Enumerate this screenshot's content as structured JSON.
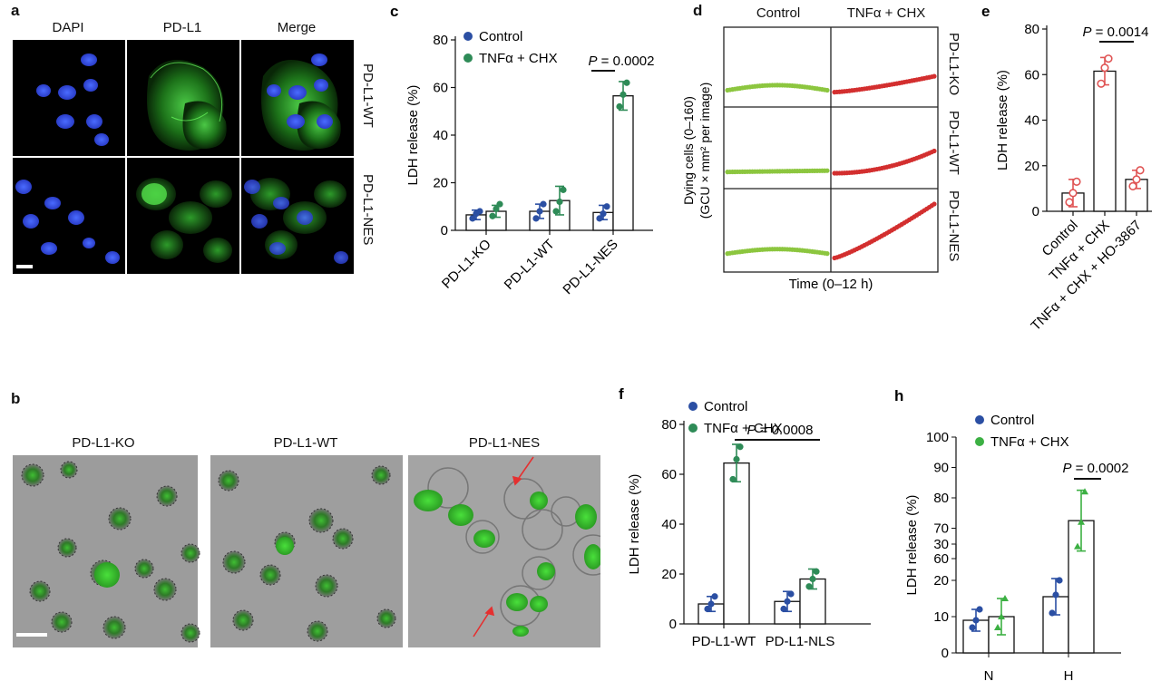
{
  "panel_a": {
    "letter": "a",
    "columns": [
      "DAPI",
      "PD-L1",
      "Merge"
    ],
    "rows": [
      "PD-L1-WT",
      "PD-L1-NES"
    ]
  },
  "panel_b": {
    "letter": "b",
    "titles": [
      "PD-L1-KO",
      "PD-L1-WT",
      "PD-L1-NES"
    ]
  },
  "panel_d": {
    "letter": "d",
    "columns": [
      "Control",
      "TNFα + CHX"
    ],
    "rows": [
      "PD-L1-KO",
      "PD-L1-WT",
      "PD-L1-NES"
    ],
    "ylabel_1": "Dying cells (0–160)",
    "ylabel_2": "(GCU × mm² per image)",
    "xlabel": "Time (0–12 h)",
    "colors": {
      "control": "#8cc63f",
      "treated": "#d32f2f"
    }
  },
  "chart_data": [
    {
      "id": "c",
      "letter": "c",
      "type": "bar",
      "categories": [
        "PD-L1-KO",
        "PD-L1-WT",
        "PD-L1-NES"
      ],
      "series": [
        {
          "name": "Control",
          "color": "#2b4fa3",
          "values": [
            6.5,
            8,
            7.5
          ],
          "err": [
            2,
            3,
            3
          ],
          "points": [
            [
              5,
              7,
              8
            ],
            [
              5,
              8,
              11
            ],
            [
              5,
              7,
              10
            ]
          ]
        },
        {
          "name": "TNFα + CHX",
          "color": "#2e8b57",
          "values": [
            8,
            12.5,
            56.5
          ],
          "err": [
            2.5,
            6,
            6
          ],
          "points": [
            [
              6,
              9,
              11
            ],
            [
              8,
              12,
              17
            ],
            [
              52,
              57,
              62
            ]
          ]
        }
      ],
      "ylabel": "LDH release (%)",
      "ylim": [
        0,
        80
      ],
      "yticks": [
        0,
        20,
        40,
        60,
        80
      ],
      "annotation": "P = 0.0002"
    },
    {
      "id": "e",
      "letter": "e",
      "type": "bar",
      "categories": [
        "Control",
        "TNFα + CHX",
        "TNFα + CHX + HO-3867"
      ],
      "series": [
        {
          "name": "",
          "color": "#e05555",
          "values": [
            8,
            61.5,
            14
          ],
          "err": [
            6,
            6,
            4
          ],
          "points": [
            [
              4,
              8,
              13
            ],
            [
              56,
              63,
              67
            ],
            [
              11,
              14,
              18
            ]
          ]
        }
      ],
      "ylabel": "LDH release (%)",
      "ylim": [
        0,
        80
      ],
      "yticks": [
        0,
        20,
        40,
        60,
        80
      ],
      "annotation": "P = 0.0014"
    },
    {
      "id": "f",
      "letter": "f",
      "type": "bar",
      "categories": [
        "PD-L1-WT",
        "PD-L1-NLS"
      ],
      "series": [
        {
          "name": "Control",
          "color": "#2b4fa3",
          "values": [
            8,
            9
          ],
          "err": [
            3,
            4
          ],
          "points": [
            [
              6,
              8,
              11
            ],
            [
              6,
              9,
              12
            ]
          ]
        },
        {
          "name": "TNFα + CHX",
          "color": "#2e8b57",
          "values": [
            64.5,
            18
          ],
          "err": [
            7.5,
            4
          ],
          "points": [
            [
              58,
              66,
              71
            ],
            [
              15,
              18,
              21
            ]
          ]
        }
      ],
      "ylabel": "LDH release (%)",
      "ylim": [
        0,
        80
      ],
      "yticks": [
        0,
        20,
        40,
        60,
        80
      ],
      "annotation": "P = 0.0008"
    },
    {
      "id": "h",
      "letter": "h",
      "type": "bar",
      "categories": [
        "N",
        "H"
      ],
      "series": [
        {
          "name": "Control",
          "color": "#2b4fa3",
          "values": [
            9,
            15.5
          ],
          "err": [
            3,
            5
          ],
          "points": [
            [
              7,
              9,
              12
            ],
            [
              11,
              16,
              20
            ]
          ]
        },
        {
          "name": "TNFα + CHX",
          "color": "#3cb043",
          "values": [
            10,
            72.5
          ],
          "err": [
            5,
            10
          ],
          "points": [
            [
              7,
              10,
              15
            ],
            [
              64,
              72,
              82
            ]
          ]
        }
      ],
      "ylabel": "LDH release (%)",
      "yticks_lower": [
        0,
        10,
        20,
        30
      ],
      "yticks_upper": [
        60,
        70,
        80,
        90,
        100
      ],
      "annotation": "P = 0.0002"
    }
  ]
}
